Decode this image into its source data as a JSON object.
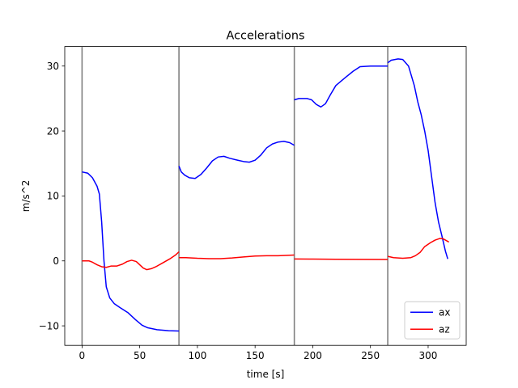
{
  "chart_data": {
    "type": "line",
    "title": "Accelerations",
    "xlabel": "time [s]",
    "ylabel": "m/s^2",
    "xlim": [
      -15,
      333
    ],
    "ylim": [
      -13,
      33
    ],
    "xticks": [
      0,
      50,
      100,
      150,
      200,
      250,
      300
    ],
    "yticks": [
      -10,
      0,
      10,
      20,
      30
    ],
    "grid": false,
    "legend_position": "lower-right",
    "vlines": [
      0,
      84,
      184,
      265
    ],
    "vline_color": "#808080",
    "series": [
      {
        "name": "ax",
        "color": "#0000ff",
        "segments": [
          [
            [
              0,
              13.7
            ],
            [
              5,
              13.5
            ],
            [
              9,
              12.8
            ],
            [
              13,
              11.5
            ],
            [
              15,
              10.3
            ],
            [
              17,
              6
            ],
            [
              19,
              0
            ],
            [
              21,
              -4
            ],
            [
              24,
              -5.7
            ],
            [
              28,
              -6.6
            ],
            [
              33,
              -7.2
            ],
            [
              40,
              -8
            ],
            [
              46,
              -9
            ],
            [
              52,
              -9.9
            ],
            [
              57,
              -10.3
            ],
            [
              65,
              -10.6
            ],
            [
              75,
              -10.75
            ],
            [
              84,
              -10.8
            ]
          ],
          [
            [
              84,
              14.6
            ],
            [
              86,
              13.7
            ],
            [
              89,
              13.2
            ],
            [
              93,
              12.8
            ],
            [
              98,
              12.7
            ],
            [
              103,
              13.3
            ],
            [
              108,
              14.3
            ],
            [
              113,
              15.4
            ],
            [
              118,
              16
            ],
            [
              123,
              16.1
            ],
            [
              128,
              15.8
            ],
            [
              135,
              15.5
            ],
            [
              140,
              15.3
            ],
            [
              145,
              15.2
            ],
            [
              150,
              15.5
            ],
            [
              155,
              16.3
            ],
            [
              160,
              17.4
            ],
            [
              165,
              18
            ],
            [
              170,
              18.3
            ],
            [
              175,
              18.4
            ],
            [
              180,
              18.2
            ],
            [
              184,
              17.8
            ]
          ],
          [
            [
              184,
              24.8
            ],
            [
              188,
              25
            ],
            [
              195,
              25
            ],
            [
              199,
              24.8
            ],
            [
              203,
              24.1
            ],
            [
              207,
              23.7
            ],
            [
              211,
              24.2
            ],
            [
              215,
              25.5
            ],
            [
              220,
              27
            ],
            [
              228,
              28.2
            ],
            [
              235,
              29.2
            ],
            [
              241,
              29.9
            ],
            [
              250,
              30
            ],
            [
              258,
              30
            ],
            [
              265,
              30
            ]
          ],
          [
            [
              265,
              30.5
            ],
            [
              268,
              30.9
            ],
            [
              274,
              31.1
            ],
            [
              278,
              31
            ],
            [
              283,
              30
            ],
            [
              288,
              27
            ],
            [
              291,
              24.5
            ],
            [
              294,
              22.5
            ],
            [
              297,
              20
            ],
            [
              300,
              17
            ],
            [
              303,
              13
            ],
            [
              306,
              9
            ],
            [
              309,
              6
            ],
            [
              312,
              3.8
            ],
            [
              315,
              1.5
            ],
            [
              317,
              0.3
            ]
          ]
        ]
      },
      {
        "name": "az",
        "color": "#ff0000",
        "segments": [
          [
            [
              0,
              0
            ],
            [
              6,
              0
            ],
            [
              9,
              -0.2
            ],
            [
              13,
              -0.6
            ],
            [
              17,
              -0.9
            ],
            [
              21,
              -1
            ],
            [
              25,
              -0.8
            ],
            [
              30,
              -0.8
            ],
            [
              35,
              -0.5
            ],
            [
              39,
              -0.1
            ],
            [
              43,
              0.1
            ],
            [
              47,
              -0.1
            ],
            [
              50,
              -0.6
            ],
            [
              53,
              -1.1
            ],
            [
              56,
              -1.35
            ],
            [
              60,
              -1.2
            ],
            [
              64,
              -0.9
            ],
            [
              70,
              -0.3
            ],
            [
              76,
              0.3
            ],
            [
              81,
              0.9
            ],
            [
              84,
              1.4
            ]
          ],
          [
            [
              84,
              0.5
            ],
            [
              90,
              0.5
            ],
            [
              100,
              0.4
            ],
            [
              110,
              0.35
            ],
            [
              120,
              0.35
            ],
            [
              130,
              0.45
            ],
            [
              140,
              0.6
            ],
            [
              150,
              0.75
            ],
            [
              160,
              0.8
            ],
            [
              170,
              0.8
            ],
            [
              178,
              0.85
            ],
            [
              184,
              0.9
            ]
          ],
          [
            [
              184,
              0.3
            ],
            [
              200,
              0.28
            ],
            [
              220,
              0.25
            ],
            [
              240,
              0.24
            ],
            [
              265,
              0.22
            ]
          ],
          [
            [
              265,
              0.7
            ],
            [
              270,
              0.5
            ],
            [
              278,
              0.4
            ],
            [
              285,
              0.5
            ],
            [
              289,
              0.8
            ],
            [
              293,
              1.3
            ],
            [
              297,
              2.2
            ],
            [
              302,
              2.8
            ],
            [
              306,
              3.2
            ],
            [
              310,
              3.45
            ],
            [
              313,
              3.4
            ],
            [
              316,
              3.1
            ],
            [
              318,
              2.9
            ]
          ]
        ]
      }
    ]
  }
}
